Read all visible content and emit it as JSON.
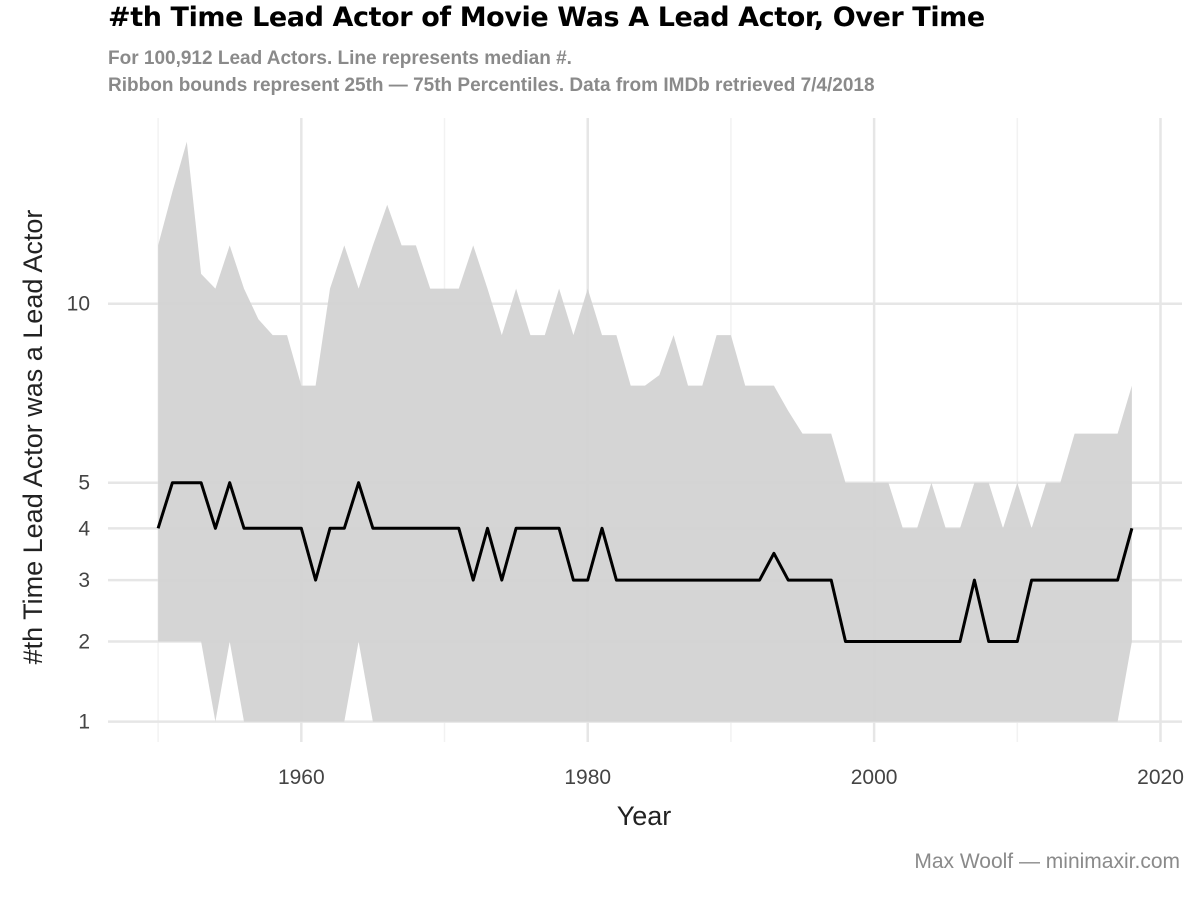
{
  "header": {
    "title": "#th Time Lead Actor of Movie Was A Lead Actor, Over Time",
    "subtitle_line1": "For 100,912 Lead Actors. Line represents median #.",
    "subtitle_line2": "Ribbon bounds represent 25th — 75th Percentiles. Data from IMDb retrieved 7/4/2018"
  },
  "caption": "Max Woolf — minimaxir.com",
  "colors": {
    "ribbon": "#d3d3d3",
    "line": "#000000",
    "grid": "#e6e6e6"
  },
  "chart_data": {
    "type": "area",
    "xlabel": "Year",
    "ylabel": "#th Time Lead Actor was a Lead Actor",
    "xlim": [
      1946.5,
      2021.5
    ],
    "ylim": [
      0.8,
      17
    ],
    "yscale": "sqrt",
    "x_ticks": [
      1960,
      1980,
      2000,
      2020
    ],
    "y_ticks": [
      1,
      2,
      3,
      4,
      5,
      10
    ],
    "grid": true,
    "legend": "none",
    "x": [
      1950,
      1951,
      1952,
      1953,
      1954,
      1955,
      1956,
      1957,
      1958,
      1959,
      1960,
      1961,
      1962,
      1963,
      1964,
      1965,
      1966,
      1967,
      1968,
      1969,
      1970,
      1971,
      1972,
      1973,
      1974,
      1975,
      1976,
      1977,
      1978,
      1979,
      1980,
      1981,
      1982,
      1983,
      1984,
      1985,
      1986,
      1987,
      1988,
      1989,
      1990,
      1991,
      1992,
      1993,
      1994,
      1995,
      1996,
      1997,
      1998,
      1999,
      2000,
      2001,
      2002,
      2003,
      2004,
      2005,
      2006,
      2007,
      2008,
      2009,
      2010,
      2011,
      2012,
      2013,
      2014,
      2015,
      2016,
      2017,
      2018
    ],
    "series": [
      {
        "name": "median",
        "values": [
          4,
          5,
          5,
          5,
          4,
          5,
          4,
          4,
          4,
          4,
          4,
          3,
          4,
          4,
          5,
          4,
          4,
          4,
          4,
          4,
          4,
          4,
          3,
          4,
          3,
          4,
          4,
          4,
          4,
          3,
          3,
          4,
          3,
          3,
          3,
          3,
          3,
          3,
          3,
          3,
          3,
          3,
          3,
          3.5,
          3,
          3,
          3,
          3,
          2,
          2,
          2,
          2,
          2,
          2,
          2,
          2,
          2,
          3,
          2,
          2,
          2,
          3,
          3,
          3,
          3,
          3,
          3,
          3,
          4
        ]
      },
      {
        "name": "25th percentile",
        "values": [
          2,
          2,
          2,
          2,
          1,
          2,
          1,
          1,
          1,
          1,
          1,
          1,
          1,
          1,
          2,
          1,
          1,
          1,
          1,
          1,
          1,
          1,
          1,
          1,
          1,
          1,
          1,
          1,
          1,
          1,
          1,
          1,
          1,
          1,
          1,
          1,
          1,
          1,
          1,
          1,
          1,
          1,
          1,
          1,
          1,
          1,
          1,
          1,
          1,
          1,
          1,
          1,
          1,
          1,
          1,
          1,
          1,
          1,
          1,
          1,
          1,
          1,
          1,
          1,
          1,
          1,
          1,
          1,
          2
        ]
      },
      {
        "name": "75th percentile",
        "values": [
          12,
          14,
          16,
          11,
          10.5,
          12,
          10.5,
          9.5,
          9,
          9,
          7.5,
          7.5,
          10.5,
          12,
          10.5,
          12,
          13.5,
          12,
          12,
          10.5,
          10.5,
          10.5,
          12,
          10.5,
          9,
          10.5,
          9,
          9,
          10.5,
          9,
          10.5,
          9,
          9,
          7.5,
          7.5,
          7.8,
          9,
          7.5,
          7.5,
          9,
          9,
          7.5,
          7.5,
          7.5,
          6.8,
          6.2,
          6.2,
          6.2,
          5,
          5,
          5,
          5,
          4,
          4,
          5,
          4,
          4,
          5,
          5,
          4,
          5,
          4,
          5,
          5,
          6.2,
          6.2,
          6.2,
          6.2,
          7.5
        ]
      }
    ]
  }
}
